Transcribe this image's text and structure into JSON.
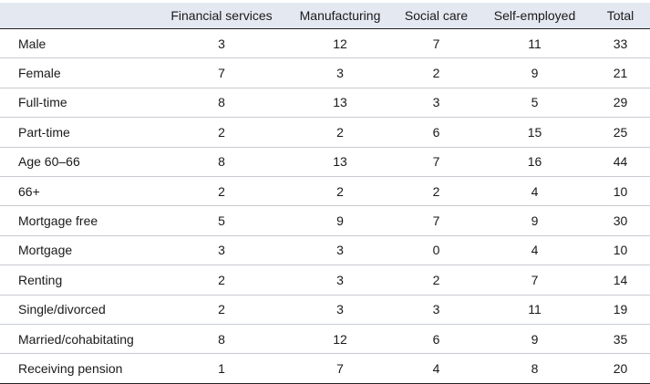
{
  "table": {
    "columns": [
      "",
      "Financial services",
      "Manufacturing",
      "Social care",
      "Self-employed",
      "Total"
    ],
    "rows": [
      {
        "label": "Male",
        "values": [
          "3",
          "12",
          "7",
          "11",
          "33"
        ]
      },
      {
        "label": "Female",
        "values": [
          "7",
          "3",
          "2",
          "9",
          "21"
        ]
      },
      {
        "label": "Full-time",
        "values": [
          "8",
          "13",
          "3",
          "5",
          "29"
        ]
      },
      {
        "label": "Part-time",
        "values": [
          "2",
          "2",
          "6",
          "15",
          "25"
        ]
      },
      {
        "label": "Age 60–66",
        "values": [
          "8",
          "13",
          "7",
          "16",
          "44"
        ]
      },
      {
        "label": "66+",
        "values": [
          "2",
          "2",
          "2",
          "4",
          "10"
        ]
      },
      {
        "label": "Mortgage free",
        "values": [
          "5",
          "9",
          "7",
          "9",
          "30"
        ]
      },
      {
        "label": "Mortgage",
        "values": [
          "3",
          "3",
          "0",
          "4",
          "10"
        ]
      },
      {
        "label": "Renting",
        "values": [
          "2",
          "3",
          "2",
          "7",
          "14"
        ]
      },
      {
        "label": "Single/divorced",
        "values": [
          "2",
          "3",
          "3",
          "11",
          "19"
        ]
      },
      {
        "label": "Married/cohabitating",
        "values": [
          "8",
          "12",
          "6",
          "9",
          "35"
        ]
      },
      {
        "label": "Receiving pension",
        "values": [
          "1",
          "7",
          "4",
          "8",
          "20"
        ]
      }
    ]
  },
  "colors": {
    "header_background": "#e4e8f1",
    "text": "#1a1a1a",
    "rule": "#222222",
    "row_divider": "#c8cbd0"
  }
}
